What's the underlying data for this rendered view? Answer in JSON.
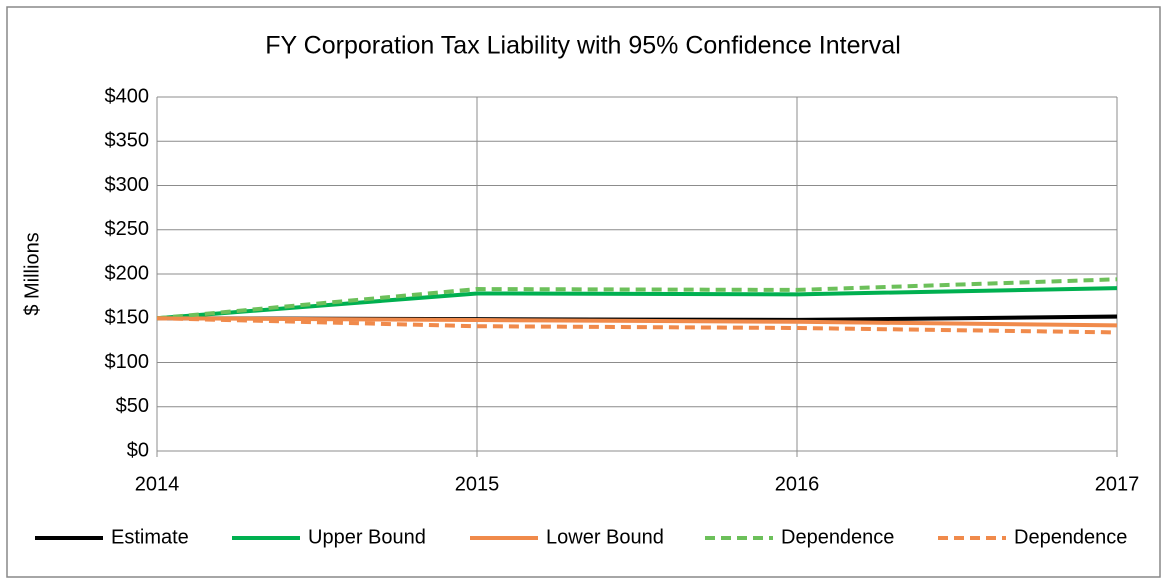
{
  "chart_data": {
    "type": "line",
    "title": "FY Corporation Tax Liability with 95% Confidence Interval",
    "y_label": "$ Millions",
    "x": [
      2014,
      2015,
      2016,
      2017
    ],
    "xlim": [
      2014,
      2017
    ],
    "xticks": [
      2014,
      2015,
      2016,
      2017
    ],
    "ylim": [
      0,
      400
    ],
    "yticks": [
      {
        "value": 0,
        "label": "$0"
      },
      {
        "value": 50,
        "label": "$50"
      },
      {
        "value": 100,
        "label": "$100"
      },
      {
        "value": 150,
        "label": "$150"
      },
      {
        "value": 200,
        "label": "$200"
      },
      {
        "value": 250,
        "label": "$250"
      },
      {
        "value": 300,
        "label": "$300"
      },
      {
        "value": 350,
        "label": "$350"
      },
      {
        "value": 400,
        "label": "$400"
      }
    ],
    "grid": true,
    "legend": "bottom",
    "series": [
      {
        "name": "Estimate",
        "color": "#000000",
        "dashed": false,
        "values": [
          150,
          149,
          148,
          152
        ]
      },
      {
        "name": "Upper Bound",
        "color": "#00b050",
        "dashed": false,
        "values": [
          150,
          178,
          177,
          184
        ]
      },
      {
        "name": "Lower Bound",
        "color": "#f08a4b",
        "dashed": false,
        "values": [
          150,
          148,
          146,
          142
        ]
      },
      {
        "name": "Dependence",
        "color": "#6cc05a",
        "dashed": true,
        "values": [
          150,
          183,
          182,
          194
        ]
      },
      {
        "name": "Dependence",
        "color": "#f08a4b",
        "dashed": true,
        "values": [
          150,
          141,
          139,
          134
        ]
      }
    ]
  }
}
